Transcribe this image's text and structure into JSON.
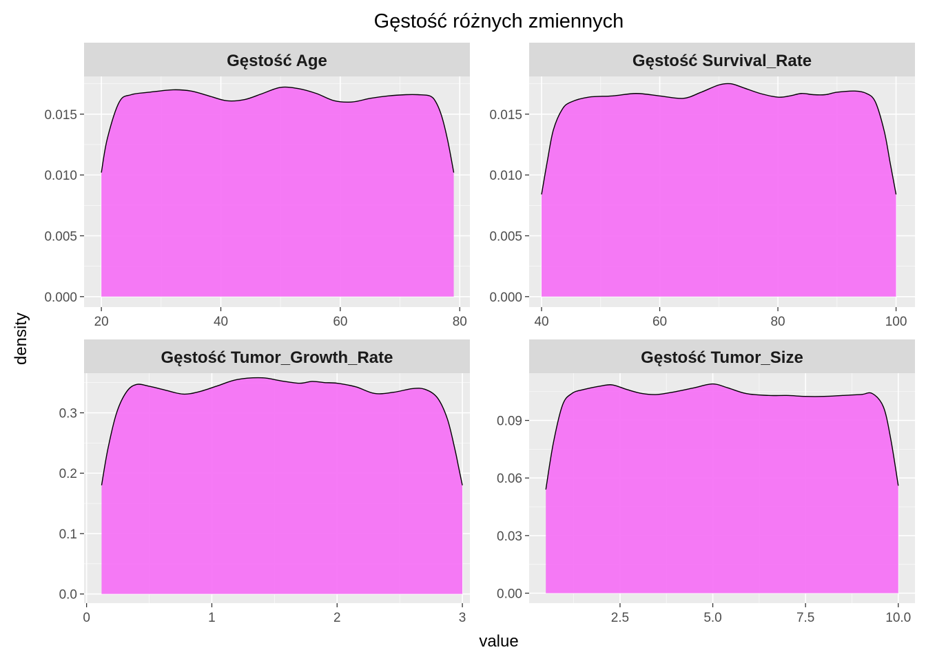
{
  "chart_data": {
    "type": "area",
    "title": "Gęstość różnych zmiennych",
    "xlabel": "value",
    "ylabel": "density",
    "fill_color": "#f673f5",
    "line_color": "#000000",
    "panel_background": "#ebebeb",
    "strip_background": "#d9d9d9",
    "grid": true,
    "facets": [
      {
        "label": "Gęstość  Age",
        "xlim": [
          17.1,
          81.7
        ],
        "ylim": [
          -0.00086,
          0.0181
        ],
        "x_ticks": [
          20,
          40,
          60,
          80
        ],
        "x_tick_labels": [
          "20",
          "40",
          "60",
          "80"
        ],
        "y_ticks": [
          0,
          0.005,
          0.01,
          0.015
        ],
        "y_tick_labels": [
          "0.000",
          "0.005",
          "0.010",
          "0.015"
        ],
        "x": [
          20,
          21,
          23,
          25,
          28,
          32,
          35,
          38,
          41,
          44,
          47,
          50,
          53,
          56,
          59,
          62,
          65,
          68,
          71,
          73,
          75,
          76,
          77,
          78,
          79
        ],
        "y": [
          0.0102,
          0.013,
          0.016,
          0.0166,
          0.0168,
          0.017,
          0.0169,
          0.0165,
          0.0161,
          0.0162,
          0.0167,
          0.0172,
          0.0171,
          0.0167,
          0.0161,
          0.016,
          0.0163,
          0.0165,
          0.0166,
          0.0166,
          0.0165,
          0.016,
          0.0148,
          0.0128,
          0.0102
        ]
      },
      {
        "label": "Gęstość  Survival_Rate",
        "xlim": [
          37.9,
          103.2
        ],
        "ylim": [
          -0.00086,
          0.0181
        ],
        "x_ticks": [
          40,
          60,
          80,
          100
        ],
        "x_tick_labels": [
          "40",
          "60",
          "80",
          "100"
        ],
        "y_ticks": [
          0,
          0.005,
          0.01,
          0.015
        ],
        "y_tick_labels": [
          "0.000",
          "0.005",
          "0.010",
          "0.015"
        ],
        "x": [
          40,
          41,
          42,
          43.5,
          45,
          48,
          52,
          56,
          60,
          64,
          67,
          70,
          72,
          74,
          77,
          80,
          82,
          84,
          86,
          88,
          90,
          93,
          95,
          96.5,
          98,
          99,
          100
        ],
        "y": [
          0.0084,
          0.0112,
          0.0137,
          0.0154,
          0.016,
          0.0164,
          0.0165,
          0.0167,
          0.0165,
          0.0163,
          0.0168,
          0.0174,
          0.0175,
          0.0172,
          0.0167,
          0.0164,
          0.0165,
          0.0167,
          0.0166,
          0.0166,
          0.0168,
          0.0169,
          0.0167,
          0.016,
          0.0136,
          0.011,
          0.0084
        ]
      },
      {
        "label": "Gęstość  Tumor_Growth_Rate",
        "xlim": [
          -0.02,
          3.06
        ],
        "ylim": [
          -0.0152,
          0.3656
        ],
        "x_ticks": [
          0,
          1,
          2,
          3
        ],
        "x_tick_labels": [
          "0",
          "1",
          "2",
          "3"
        ],
        "y_ticks": [
          0,
          0.1,
          0.2,
          0.3
        ],
        "y_tick_labels": [
          "0.0",
          "0.1",
          "0.2",
          "0.3"
        ],
        "x": [
          0.12,
          0.17,
          0.24,
          0.32,
          0.4,
          0.5,
          0.62,
          0.77,
          0.9,
          1.05,
          1.2,
          1.4,
          1.55,
          1.7,
          1.8,
          1.9,
          2.0,
          2.15,
          2.3,
          2.45,
          2.6,
          2.7,
          2.8,
          2.88,
          2.94,
          2.97,
          3.0
        ],
        "y": [
          0.18,
          0.24,
          0.3,
          0.335,
          0.347,
          0.344,
          0.338,
          0.331,
          0.335,
          0.345,
          0.355,
          0.358,
          0.353,
          0.349,
          0.352,
          0.35,
          0.349,
          0.343,
          0.332,
          0.334,
          0.34,
          0.339,
          0.325,
          0.29,
          0.24,
          0.21,
          0.18
        ]
      },
      {
        "label": "Gęstość  Tumor_Size",
        "xlim": [
          0.05,
          10.45
        ],
        "ylim": [
          -0.0052,
          0.1146
        ],
        "x_ticks": [
          2.5,
          5.0,
          7.5,
          10.0
        ],
        "x_tick_labels": [
          "2.5",
          "5.0",
          "7.5",
          "10.0"
        ],
        "y_ticks": [
          0,
          0.03,
          0.06,
          0.09
        ],
        "y_tick_labels": [
          "0.00",
          "0.03",
          "0.06",
          "0.09"
        ],
        "x": [
          0.5,
          0.7,
          0.95,
          1.2,
          1.5,
          2.0,
          2.3,
          2.7,
          3.1,
          3.5,
          4.0,
          4.5,
          5.0,
          5.4,
          5.9,
          6.5,
          7.0,
          7.5,
          8.0,
          8.5,
          9.0,
          9.3,
          9.6,
          9.8,
          10.0
        ],
        "y": [
          0.054,
          0.078,
          0.098,
          0.104,
          0.106,
          0.108,
          0.1085,
          0.106,
          0.104,
          0.1035,
          0.105,
          0.107,
          0.109,
          0.107,
          0.104,
          0.103,
          0.103,
          0.1025,
          0.1025,
          0.103,
          0.1035,
          0.104,
          0.097,
          0.08,
          0.056
        ]
      }
    ]
  }
}
